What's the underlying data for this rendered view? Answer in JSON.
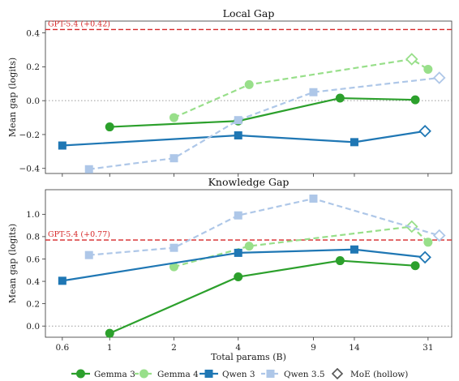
{
  "chart_data": [
    {
      "type": "line",
      "title": "Local Gap",
      "xlabel": "",
      "ylabel": "Mean gap (logits)",
      "ylim": [
        -0.43,
        0.47
      ],
      "yticks": [
        -0.4,
        -0.2,
        0.0,
        0.2,
        0.4
      ],
      "ytick_labels": [
        "−0.4",
        "−0.2",
        "0.0",
        "0.2",
        "0.4"
      ],
      "zero_line": true,
      "reference": {
        "label": "GPT-5.4 (+0.42)",
        "value": 0.42,
        "color": "#d62728"
      },
      "series": [
        {
          "name": "Gemma 3",
          "points": [
            {
              "x": 1,
              "y": -0.155
            },
            {
              "x": 4,
              "y": -0.12
            },
            {
              "x": 12,
              "y": 0.015
            },
            {
              "x": 27,
              "y": 0.005,
              "moe": false
            }
          ]
        },
        {
          "name": "Gemma 4",
          "points": [
            {
              "x": 2,
              "y": -0.1
            },
            {
              "x": 4.5,
              "y": 0.095
            },
            {
              "x": 26,
              "y": 0.245,
              "moe": true
            },
            {
              "x": 31,
              "y": 0.185
            }
          ]
        },
        {
          "name": "Qwen 3",
          "points": [
            {
              "x": 0.6,
              "y": -0.265
            },
            {
              "x": 4,
              "y": -0.205
            },
            {
              "x": 14,
              "y": -0.245
            },
            {
              "x": 30,
              "y": -0.18,
              "moe": true
            }
          ]
        },
        {
          "name": "Qwen 3.5",
          "points": [
            {
              "x": 0.8,
              "y": -0.405
            },
            {
              "x": 2,
              "y": -0.34
            },
            {
              "x": 4,
              "y": -0.115
            },
            {
              "x": 9,
              "y": 0.05
            },
            {
              "x": 35,
              "y": 0.135,
              "moe": true
            }
          ]
        }
      ]
    },
    {
      "type": "line",
      "title": "Knowledge Gap",
      "xlabel": "Total params (B)",
      "ylabel": "Mean gap (logits)",
      "ylim": [
        -0.1,
        1.22
      ],
      "yticks": [
        0.0,
        0.2,
        0.4,
        0.6,
        0.8,
        1.0
      ],
      "ytick_labels": [
        "0.0",
        "0.2",
        "0.4",
        "0.6",
        "0.8",
        "1.0"
      ],
      "zero_line": true,
      "reference": {
        "label": "GPT-5.4 (+0.77)",
        "value": 0.77,
        "color": "#d62728"
      },
      "series": [
        {
          "name": "Gemma 3",
          "points": [
            {
              "x": 1,
              "y": -0.065
            },
            {
              "x": 4,
              "y": 0.44
            },
            {
              "x": 12,
              "y": 0.585
            },
            {
              "x": 27,
              "y": 0.54,
              "moe": false
            }
          ]
        },
        {
          "name": "Gemma 4",
          "points": [
            {
              "x": 2,
              "y": 0.53
            },
            {
              "x": 4.5,
              "y": 0.715
            },
            {
              "x": 26,
              "y": 0.89,
              "moe": true
            },
            {
              "x": 31,
              "y": 0.75
            }
          ]
        },
        {
          "name": "Qwen 3",
          "points": [
            {
              "x": 0.6,
              "y": 0.405
            },
            {
              "x": 4,
              "y": 0.655
            },
            {
              "x": 14,
              "y": 0.685
            },
            {
              "x": 30,
              "y": 0.615,
              "moe": true
            }
          ]
        },
        {
          "name": "Qwen 3.5",
          "points": [
            {
              "x": 0.8,
              "y": 0.635
            },
            {
              "x": 2,
              "y": 0.7
            },
            {
              "x": 4,
              "y": 0.99
            },
            {
              "x": 9,
              "y": 1.14
            },
            {
              "x": 35,
              "y": 0.81,
              "moe": true
            }
          ]
        }
      ]
    }
  ],
  "x_axis": {
    "scale": "log",
    "xlim": [
      0.5,
      40
    ],
    "xticks": [
      0.6,
      1,
      2,
      4,
      9,
      14,
      31
    ],
    "xtick_labels": [
      "0.6",
      "1",
      "2",
      "4",
      "9",
      "14",
      "31"
    ],
    "xlabel": "Total params (B)"
  },
  "series_styles": [
    {
      "name": "Gemma 3",
      "color": "#2ca02c",
      "marker": "circle",
      "dashed": false
    },
    {
      "name": "Gemma 4",
      "color": "#98df8a",
      "marker": "circle",
      "dashed": true
    },
    {
      "name": "Qwen 3",
      "color": "#1f77b4",
      "marker": "square",
      "dashed": false
    },
    {
      "name": "Qwen 3.5",
      "color": "#aec7e8",
      "marker": "square",
      "dashed": true
    }
  ],
  "legend": {
    "placement": "bottom",
    "entries": [
      "Gemma 3",
      "Gemma 4",
      "Qwen 3",
      "Qwen 3.5",
      "MoE (hollow)"
    ]
  }
}
